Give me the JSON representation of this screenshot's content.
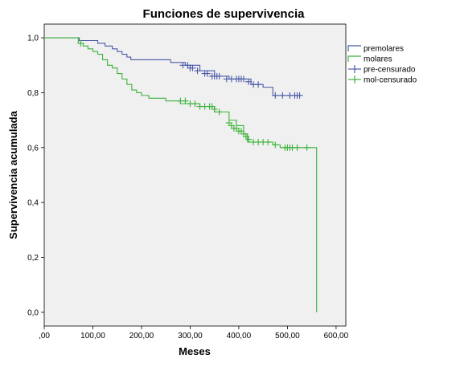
{
  "chart_data": {
    "type": "line",
    "title": "Funciones de supervivencia",
    "xlabel": "Meses",
    "ylabel": "Supervivencia acumulada",
    "xlim": [
      0,
      620
    ],
    "ylim": [
      -0.05,
      1.05
    ],
    "x_ticks": [
      0,
      100,
      200,
      300,
      400,
      500,
      600
    ],
    "x_tick_labels": [
      ",00",
      "100,00",
      "200,00",
      "300,00",
      "400,00",
      "500,00",
      "600,00"
    ],
    "y_ticks": [
      0,
      0.2,
      0.4,
      0.6,
      0.8,
      1.0
    ],
    "y_tick_labels": [
      "0,0",
      "0,2",
      "0,4",
      "0,6",
      "0,8",
      "1,0"
    ],
    "grid": false,
    "legend_position": "top-right outside",
    "colors": {
      "premolares": "#4a5aa8",
      "molares": "#3cb23c",
      "plot_bg": "#f0f0f0"
    },
    "legend": [
      {
        "label": "premolares",
        "kind": "step",
        "color": "#4a5aa8"
      },
      {
        "label": "molares",
        "kind": "step",
        "color": "#3cb23c"
      },
      {
        "label": "pre-censurado",
        "kind": "censor",
        "color": "#4a5aa8"
      },
      {
        "label": "mol-censurado",
        "kind": "censor",
        "color": "#3cb23c"
      }
    ],
    "series": [
      {
        "name": "premolares",
        "step_x": [
          0,
          72,
          110,
          125,
          140,
          150,
          160,
          170,
          178,
          260,
          290,
          320,
          350,
          380,
          410,
          425,
          450,
          470,
          530
        ],
        "step_y": [
          1.0,
          0.99,
          0.98,
          0.97,
          0.96,
          0.95,
          0.94,
          0.93,
          0.92,
          0.91,
          0.9,
          0.88,
          0.86,
          0.85,
          0.85,
          0.83,
          0.82,
          0.79,
          0.79
        ],
        "censored_x": [
          285,
          295,
          300,
          305,
          315,
          330,
          335,
          345,
          350,
          355,
          360,
          375,
          385,
          395,
          400,
          405,
          410,
          420,
          430,
          440,
          475,
          490,
          505,
          515,
          520,
          525
        ],
        "censored_y": [
          0.9,
          0.9,
          0.89,
          0.89,
          0.88,
          0.87,
          0.87,
          0.86,
          0.86,
          0.86,
          0.86,
          0.85,
          0.85,
          0.85,
          0.85,
          0.85,
          0.85,
          0.84,
          0.83,
          0.83,
          0.79,
          0.79,
          0.79,
          0.79,
          0.79,
          0.79
        ]
      },
      {
        "name": "molares",
        "step_x": [
          0,
          70,
          80,
          90,
          100,
          110,
          120,
          130,
          140,
          150,
          160,
          170,
          180,
          190,
          200,
          215,
          230,
          250,
          280,
          320,
          350,
          380,
          395,
          410,
          418,
          440,
          470,
          485,
          560,
          560
        ],
        "step_y": [
          1.0,
          0.98,
          0.97,
          0.96,
          0.95,
          0.94,
          0.92,
          0.9,
          0.89,
          0.87,
          0.85,
          0.83,
          0.81,
          0.8,
          0.79,
          0.78,
          0.78,
          0.77,
          0.76,
          0.75,
          0.73,
          0.7,
          0.68,
          0.65,
          0.62,
          0.62,
          0.61,
          0.6,
          0.6,
          0.0
        ],
        "censored_x": [
          75,
          280,
          290,
          300,
          310,
          320,
          330,
          340,
          345,
          350,
          360,
          380,
          385,
          390,
          395,
          400,
          405,
          410,
          415,
          420,
          430,
          440,
          450,
          460,
          475,
          495,
          500,
          505,
          510,
          520,
          540
        ],
        "censored_y": [
          0.98,
          0.77,
          0.77,
          0.76,
          0.76,
          0.75,
          0.75,
          0.75,
          0.75,
          0.74,
          0.73,
          0.69,
          0.68,
          0.67,
          0.67,
          0.66,
          0.66,
          0.65,
          0.64,
          0.63,
          0.62,
          0.62,
          0.62,
          0.62,
          0.61,
          0.6,
          0.6,
          0.6,
          0.6,
          0.6,
          0.6
        ]
      }
    ]
  }
}
